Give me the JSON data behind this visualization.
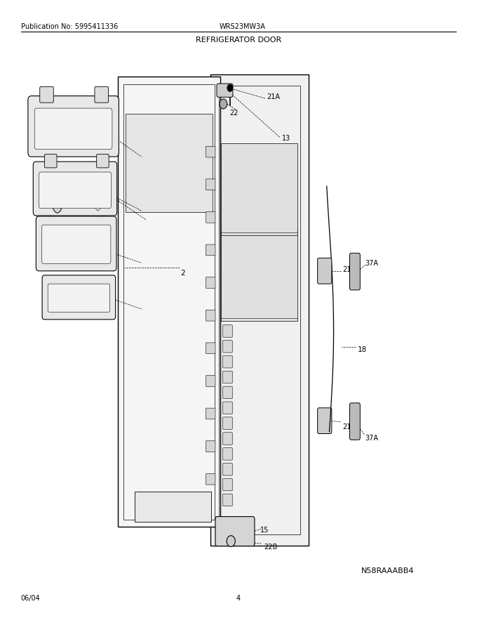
{
  "pub_no": "Publication No: 5995411336",
  "model": "WRS23MW3A",
  "title": "REFRIGERATOR DOOR",
  "date": "06/04",
  "page": "4",
  "image_code": "N58RAAABB4",
  "bg_color": "#ffffff",
  "line_color": "#000000"
}
